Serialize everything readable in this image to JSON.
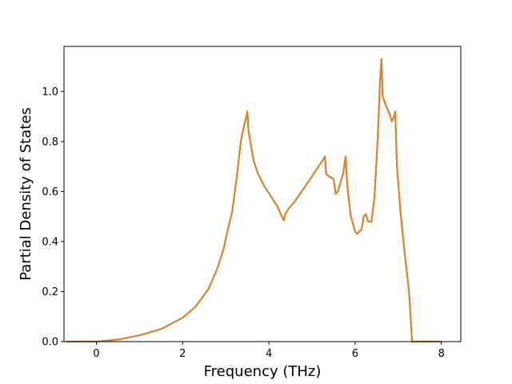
{
  "chart_data": {
    "type": "line",
    "title": "",
    "xlabel": "Frequency (THz)",
    "ylabel": "Partial Density of States",
    "xlim": [
      -0.75,
      8.45
    ],
    "ylim": [
      0.0,
      1.18
    ],
    "xticks": [
      0,
      2,
      4,
      6,
      8
    ],
    "yticks": [
      0.0,
      0.2,
      0.4,
      0.6,
      0.8,
      1.0
    ],
    "grid": false,
    "legend": "none",
    "series": [
      {
        "color": "#e8801e",
        "shadow_color": "#1f77b4",
        "x": [
          -0.7,
          0.0,
          0.5,
          1.0,
          1.5,
          2.0,
          2.3,
          2.6,
          2.8,
          2.95,
          3.05,
          3.15,
          3.25,
          3.35,
          3.42,
          3.48,
          3.5,
          3.53,
          3.58,
          3.65,
          3.75,
          3.9,
          4.05,
          4.2,
          4.3,
          4.35,
          4.38,
          4.45,
          4.6,
          4.8,
          5.0,
          5.15,
          5.27,
          5.3,
          5.33,
          5.4,
          5.5,
          5.55,
          5.6,
          5.65,
          5.72,
          5.78,
          5.82,
          5.9,
          6.0,
          6.05,
          6.15,
          6.2,
          6.25,
          6.3,
          6.38,
          6.45,
          6.52,
          6.58,
          6.61,
          6.64,
          6.7,
          6.8,
          6.85,
          6.9,
          6.93,
          6.97,
          7.05,
          7.15,
          7.25,
          7.32,
          7.35,
          7.5,
          8.0
        ],
        "y": [
          0.0,
          0.0,
          0.008,
          0.025,
          0.05,
          0.095,
          0.14,
          0.21,
          0.29,
          0.37,
          0.45,
          0.52,
          0.65,
          0.8,
          0.86,
          0.9,
          0.92,
          0.84,
          0.79,
          0.72,
          0.67,
          0.62,
          0.58,
          0.54,
          0.5,
          0.485,
          0.51,
          0.53,
          0.56,
          0.61,
          0.66,
          0.7,
          0.73,
          0.74,
          0.67,
          0.66,
          0.65,
          0.59,
          0.6,
          0.63,
          0.67,
          0.74,
          0.62,
          0.5,
          0.44,
          0.43,
          0.45,
          0.5,
          0.51,
          0.48,
          0.48,
          0.58,
          0.8,
          1.05,
          1.13,
          0.98,
          0.95,
          0.91,
          0.88,
          0.9,
          0.92,
          0.7,
          0.52,
          0.35,
          0.2,
          0.0,
          0.0,
          0.0,
          0.0
        ]
      }
    ]
  }
}
